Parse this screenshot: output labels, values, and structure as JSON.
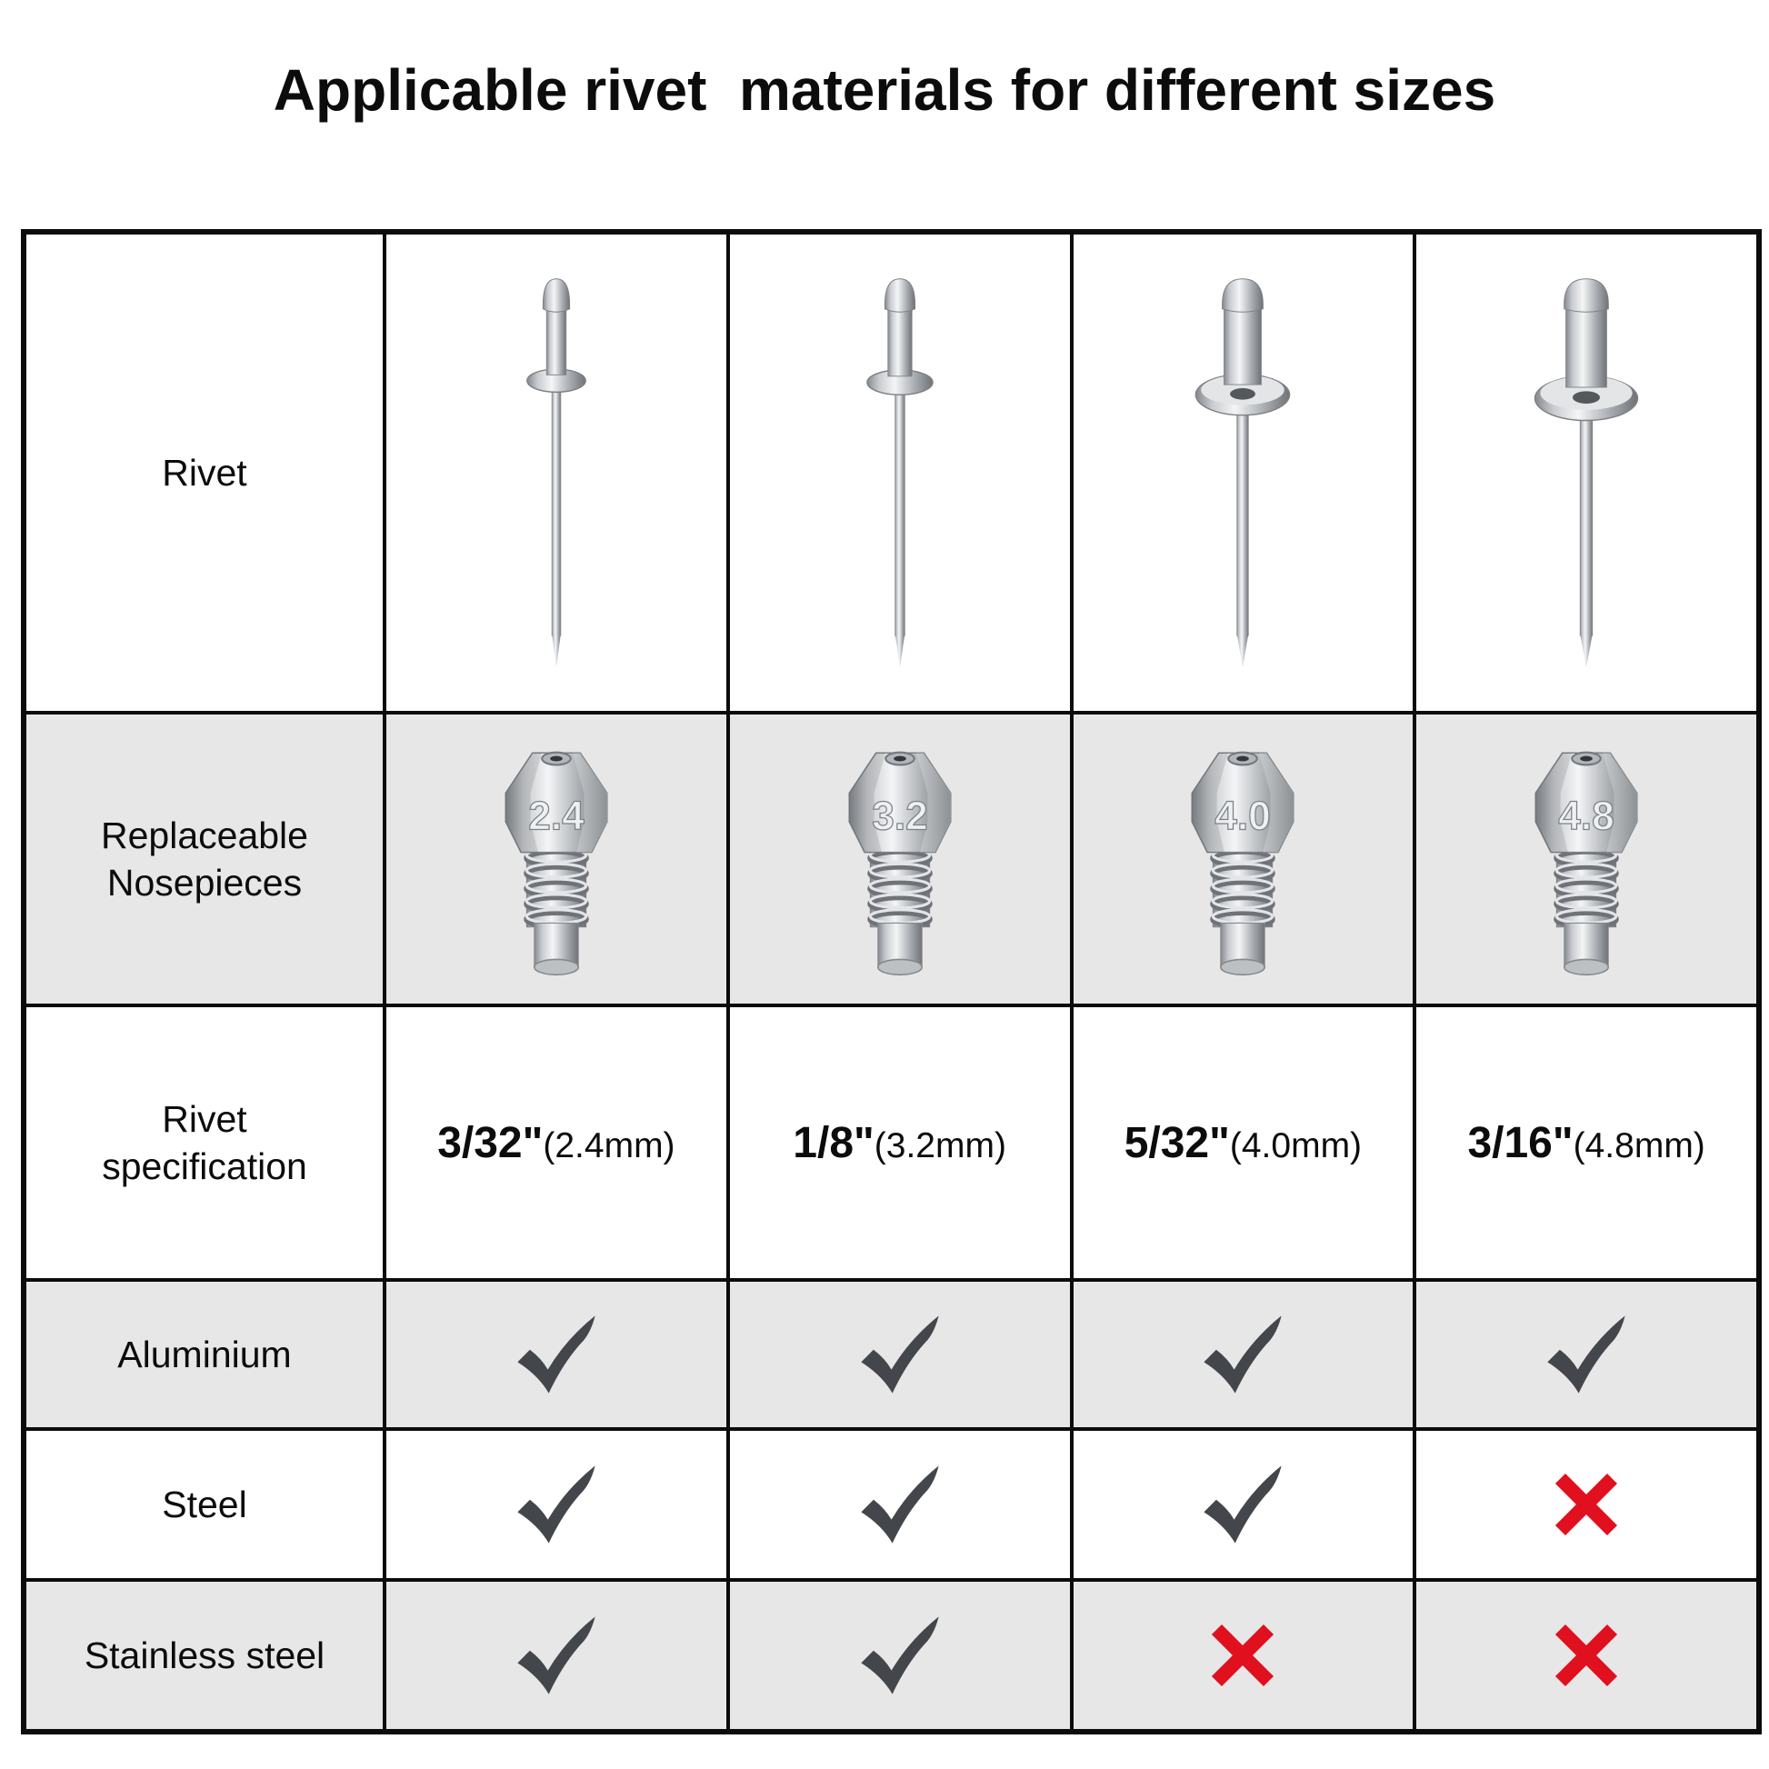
{
  "title": "Applicable rivet  materials for different sizes",
  "table": {
    "row_labels": {
      "rivet": "Rivet",
      "nosepieces": "Replaceable\nNosepieces",
      "spec": "Rivet\nspecification",
      "aluminium": "Aluminium",
      "steel": "Steel",
      "stainless": "Stainless steel"
    },
    "columns": [
      {
        "spec_main": "3/32\"",
        "spec_mm": "(2.4mm)",
        "nosepiece": "2.4",
        "aluminium": "check",
        "steel": "check",
        "stainless": "check"
      },
      {
        "spec_main": "1/8\"",
        "spec_mm": "(3.2mm)",
        "nosepiece": "3.2",
        "aluminium": "check",
        "steel": "check",
        "stainless": "check"
      },
      {
        "spec_main": "5/32\"",
        "spec_mm": "(4.0mm)",
        "nosepiece": "4.0",
        "aluminium": "check",
        "steel": "check",
        "stainless": "cross"
      },
      {
        "spec_main": "3/16\"",
        "spec_mm": "(4.8mm)",
        "nosepiece": "4.8",
        "aluminium": "check",
        "steel": "cross",
        "stainless": "cross"
      }
    ],
    "colors": {
      "check": "#43464b",
      "cross": "#e0101e",
      "row_alt_bg": "#e7e7e7",
      "border": "#0c0c0c",
      "metal_light": "#f4f5f6",
      "metal_mid": "#c9ccd0",
      "metal_dark": "#6f7377"
    }
  },
  "chart_data": {
    "type": "table",
    "title": "Applicable rivet  materials for different sizes",
    "columns": [
      "",
      "3/32\"(2.4mm)",
      "1/8\"(3.2mm)",
      "5/32\"(4.0mm)",
      "3/16\"(4.8mm)"
    ],
    "rows": [
      {
        "label": "Rivet",
        "values": [
          "rivet photo",
          "rivet photo",
          "rivet photo",
          "rivet photo"
        ]
      },
      {
        "label": "Replaceable Nosepieces",
        "values": [
          "nosepiece stamped 2.4",
          "nosepiece stamped 3.2",
          "nosepiece stamped 4.0",
          "nosepiece stamped 4.8"
        ]
      },
      {
        "label": "Rivet specification",
        "values": [
          "3/32\"(2.4mm)",
          "1/8\"(3.2mm)",
          "5/32\"(4.0mm)",
          "3/16\"(4.8mm)"
        ]
      },
      {
        "label": "Aluminium",
        "values": [
          "yes",
          "yes",
          "yes",
          "yes"
        ]
      },
      {
        "label": "Steel",
        "values": [
          "yes",
          "yes",
          "yes",
          "no"
        ]
      },
      {
        "label": "Stainless steel",
        "values": [
          "yes",
          "yes",
          "no",
          "no"
        ]
      }
    ]
  }
}
